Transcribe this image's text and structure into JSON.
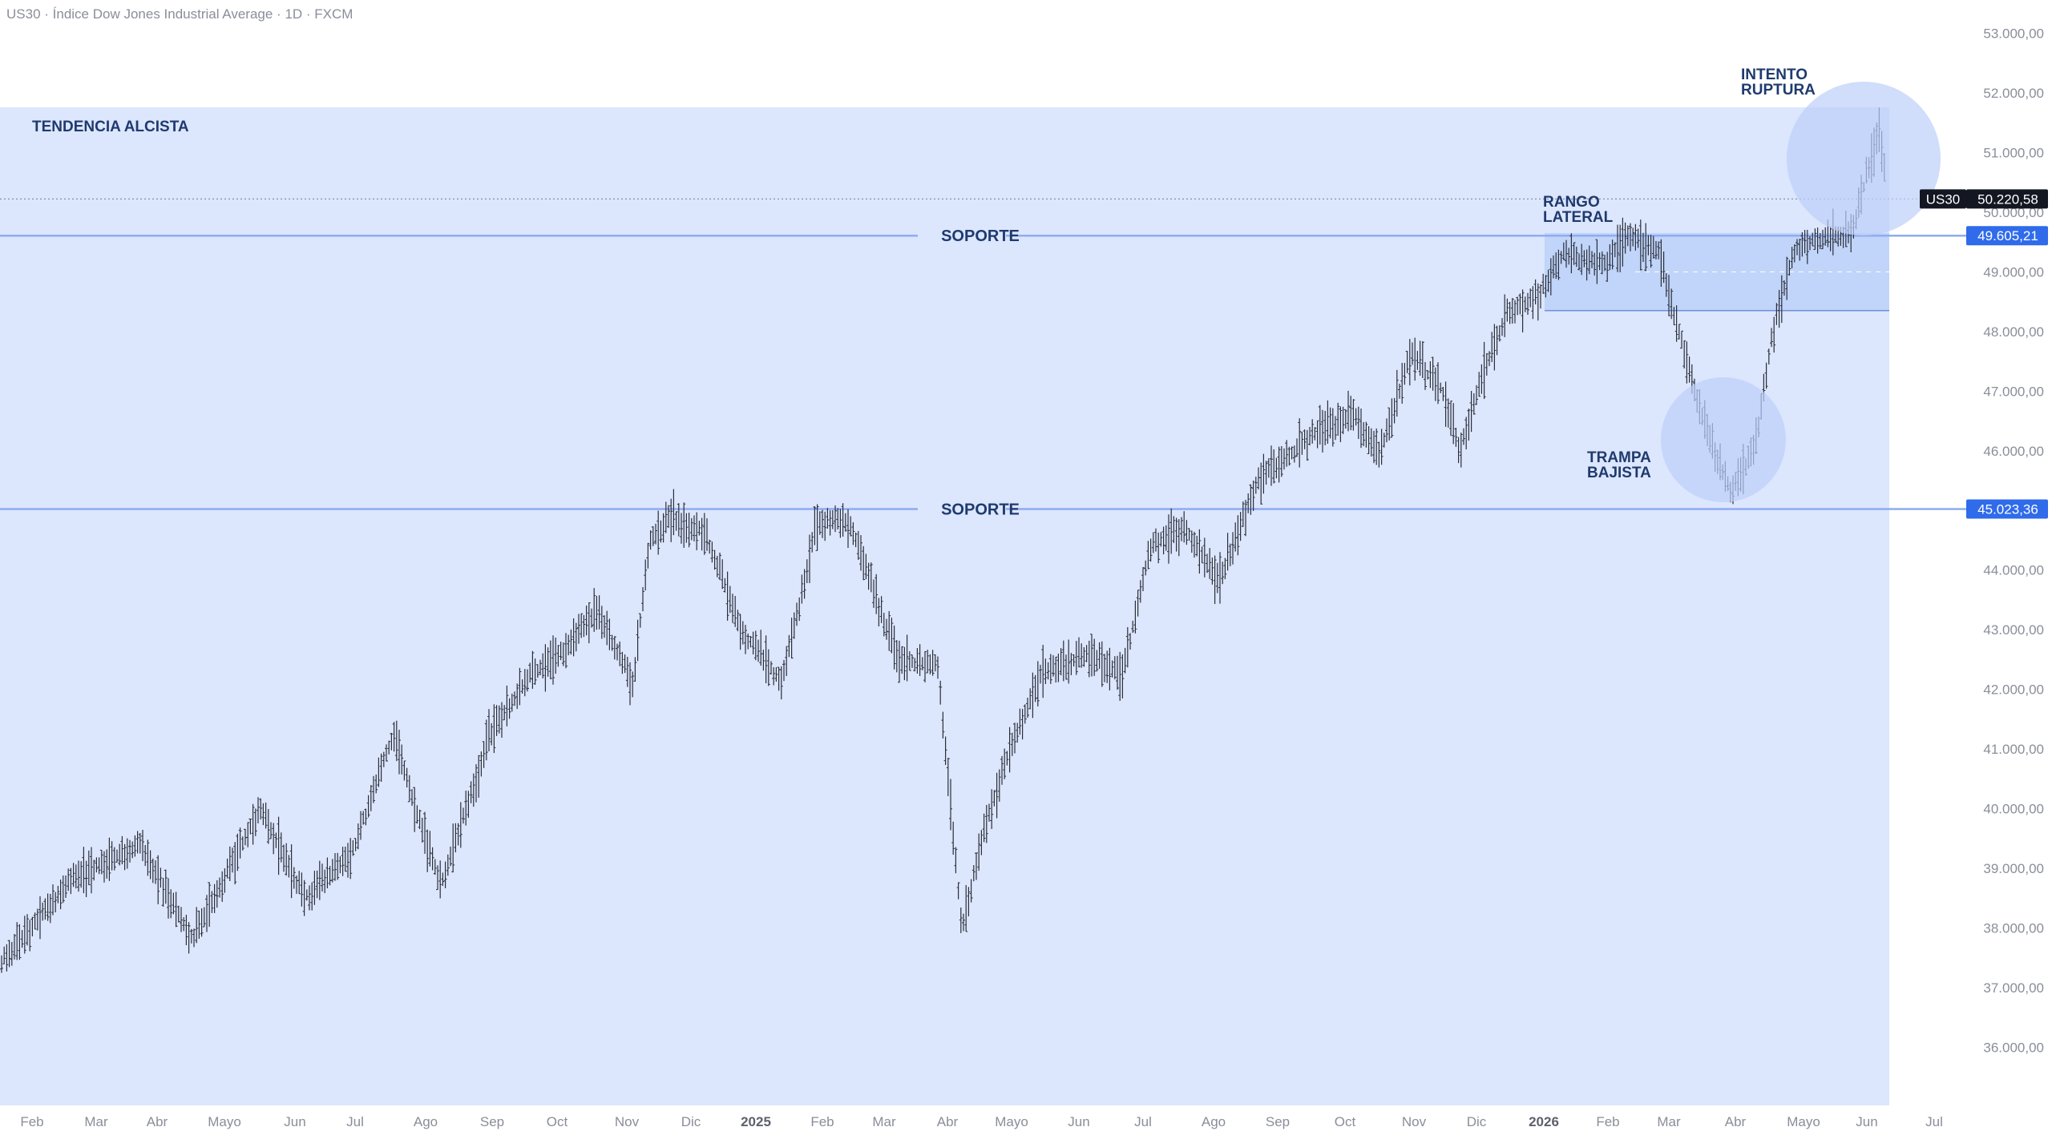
{
  "header": {
    "symbol": "US30",
    "name": "Índice Dow Jones Industrial Average",
    "timeframe": "1D",
    "source": "FXCM",
    "separator": " · "
  },
  "colors": {
    "zone": "#dce6fd",
    "range": "#b8cdf7",
    "circle": "#bccefa",
    "support_line": "#8eacf0",
    "badge_blue": "#2f6bea",
    "badge_dark": "#131722",
    "candle": "#2a2e39",
    "annotation": "#1f3a6e",
    "axis_text": "#8a8e99"
  },
  "chart_data": {
    "type": "ohlc-bar",
    "symbol": "US30",
    "interval": "1D",
    "y_axis": {
      "ylim": [
        35600,
        53200
      ],
      "ticks": [
        "36.000,00",
        "37.000,00",
        "38.000,00",
        "39.000,00",
        "40.000,00",
        "41.000,00",
        "42.000,00",
        "43.000,00",
        "44.000,00",
        "45.000,00",
        "46.000,00",
        "47.000,00",
        "48.000,00",
        "49.000,00",
        "50.000,00",
        "51.000,00",
        "52.000,00",
        "53.000,00"
      ],
      "tick_values": [
        36000,
        37000,
        38000,
        39000,
        40000,
        41000,
        42000,
        43000,
        44000,
        45000,
        46000,
        47000,
        48000,
        49000,
        50000,
        51000,
        52000,
        53000
      ]
    },
    "x_axis": {
      "ticks": [
        {
          "label": "Feb",
          "bold": false
        },
        {
          "label": "Mar",
          "bold": false
        },
        {
          "label": "Abr",
          "bold": false
        },
        {
          "label": "Mayo",
          "bold": false
        },
        {
          "label": "Jun",
          "bold": false
        },
        {
          "label": "Jul",
          "bold": false
        },
        {
          "label": "Ago",
          "bold": false
        },
        {
          "label": "Sep",
          "bold": false
        },
        {
          "label": "Oct",
          "bold": false
        },
        {
          "label": "Nov",
          "bold": false
        },
        {
          "label": "Dic",
          "bold": false
        },
        {
          "label": "2025",
          "bold": true
        },
        {
          "label": "Feb",
          "bold": false
        },
        {
          "label": "Mar",
          "bold": false
        },
        {
          "label": "Abr",
          "bold": false
        },
        {
          "label": "Mayo",
          "bold": false
        },
        {
          "label": "Jun",
          "bold": false
        },
        {
          "label": "Jul",
          "bold": false
        },
        {
          "label": "Ago",
          "bold": false
        },
        {
          "label": "Sep",
          "bold": false
        },
        {
          "label": "Oct",
          "bold": false
        },
        {
          "label": "Nov",
          "bold": false
        },
        {
          "label": "Dic",
          "bold": false
        },
        {
          "label": "2026",
          "bold": true
        },
        {
          "label": "Feb",
          "bold": false
        },
        {
          "label": "Mar",
          "bold": false
        },
        {
          "label": "Abr",
          "bold": false
        },
        {
          "label": "Mayo",
          "bold": false
        },
        {
          "label": "Jun",
          "bold": false
        },
        {
          "label": "Jul",
          "bold": false
        }
      ]
    },
    "price_path_keypoints": [
      {
        "x": 0,
        "y": 37400
      },
      {
        "x": 90,
        "y": 38800
      },
      {
        "x": 175,
        "y": 39400
      },
      {
        "x": 240,
        "y": 37800
      },
      {
        "x": 325,
        "y": 40000
      },
      {
        "x": 380,
        "y": 38500
      },
      {
        "x": 440,
        "y": 39300
      },
      {
        "x": 490,
        "y": 41200
      },
      {
        "x": 550,
        "y": 38700
      },
      {
        "x": 610,
        "y": 41200
      },
      {
        "x": 660,
        "y": 42200
      },
      {
        "x": 700,
        "y": 42600
      },
      {
        "x": 745,
        "y": 43300
      },
      {
        "x": 790,
        "y": 42100
      },
      {
        "x": 810,
        "y": 44500
      },
      {
        "x": 840,
        "y": 44900
      },
      {
        "x": 880,
        "y": 44600
      },
      {
        "x": 925,
        "y": 43000
      },
      {
        "x": 975,
        "y": 42100
      },
      {
        "x": 1020,
        "y": 44800
      },
      {
        "x": 1060,
        "y": 44800
      },
      {
        "x": 1120,
        "y": 42500
      },
      {
        "x": 1170,
        "y": 42400
      },
      {
        "x": 1200,
        "y": 38000
      },
      {
        "x": 1225,
        "y": 39500
      },
      {
        "x": 1260,
        "y": 41000
      },
      {
        "x": 1300,
        "y": 42300
      },
      {
        "x": 1360,
        "y": 42600
      },
      {
        "x": 1400,
        "y": 42200
      },
      {
        "x": 1435,
        "y": 44400
      },
      {
        "x": 1480,
        "y": 44700
      },
      {
        "x": 1520,
        "y": 43800
      },
      {
        "x": 1570,
        "y": 45500
      },
      {
        "x": 1640,
        "y": 46300
      },
      {
        "x": 1690,
        "y": 46600
      },
      {
        "x": 1720,
        "y": 45900
      },
      {
        "x": 1760,
        "y": 47600
      },
      {
        "x": 1800,
        "y": 47000
      },
      {
        "x": 1820,
        "y": 46000
      },
      {
        "x": 1850,
        "y": 47300
      },
      {
        "x": 1880,
        "y": 48300
      },
      {
        "x": 1920,
        "y": 48600
      },
      {
        "x": 1950,
        "y": 49300
      },
      {
        "x": 2000,
        "y": 49100
      },
      {
        "x": 2030,
        "y": 49600
      },
      {
        "x": 2070,
        "y": 49300
      },
      {
        "x": 2100,
        "y": 47700
      },
      {
        "x": 2130,
        "y": 46300
      },
      {
        "x": 2160,
        "y": 45300
      },
      {
        "x": 2190,
        "y": 46100
      },
      {
        "x": 2210,
        "y": 47900
      },
      {
        "x": 2240,
        "y": 49400
      },
      {
        "x": 2280,
        "y": 49600
      },
      {
        "x": 2310,
        "y": 49600
      },
      {
        "x": 2330,
        "y": 50700
      },
      {
        "x": 2345,
        "y": 51300
      },
      {
        "x": 2356,
        "y": 50200
      }
    ],
    "zones": [
      {
        "name": "tendencia-alcista",
        "from": 48500,
        "to": 51700
      },
      {
        "name": "rango-lateral",
        "from": 48400,
        "to": 49650
      }
    ],
    "levels": [
      {
        "label": "SOPORTE",
        "price": "49.605,21",
        "value": 49605.21
      },
      {
        "label": "SOPORTE",
        "price": "45.023,36",
        "value": 45023.36
      }
    ],
    "last_price": {
      "symbol": "US30",
      "price": "50.220,58",
      "value": 50220.58
    },
    "annotations": [
      {
        "text_lines": [
          "TENDENCIA ALCISTA"
        ]
      },
      {
        "text_lines": [
          "RANGO",
          "LATERAL"
        ]
      },
      {
        "text_lines": [
          "TRAMPA",
          "BAJISTA"
        ]
      },
      {
        "text_lines": [
          "INTENTO",
          "RUPTURA"
        ]
      }
    ]
  }
}
